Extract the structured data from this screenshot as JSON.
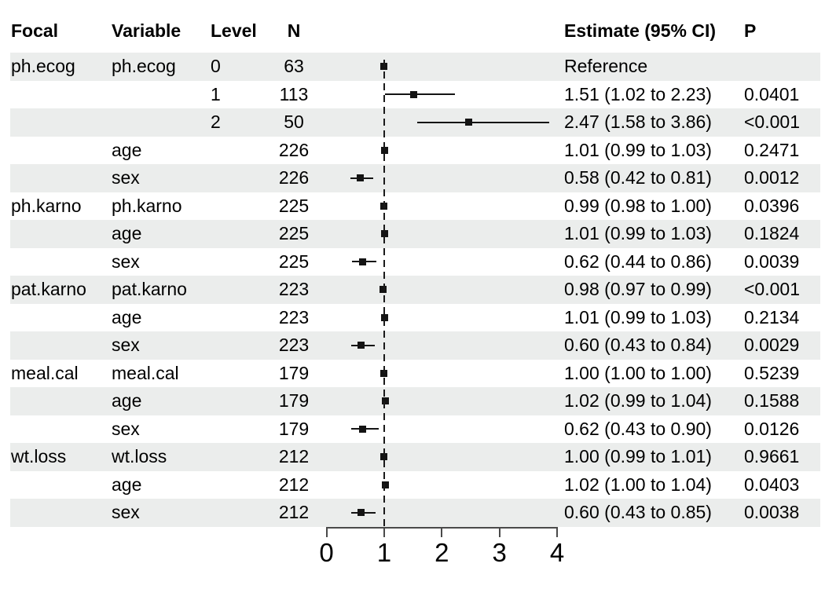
{
  "chart_data": {
    "type": "scatter",
    "variant": "forest-plot",
    "title": "",
    "xlabel": "",
    "legend": "none",
    "header": {
      "focal": "Focal",
      "variable": "Variable",
      "level": "Level",
      "n": "N",
      "estimate": "Estimate (95% CI)",
      "p": "P"
    },
    "x_axis": {
      "min": 0,
      "max": 4,
      "ticks": [
        "0",
        "1",
        "2",
        "3",
        "4"
      ],
      "reference_line": 1
    },
    "rows": [
      {
        "focal": "ph.ecog",
        "variable": "ph.ecog",
        "level": "0",
        "n": "63",
        "estimate_text": "Reference",
        "p": "",
        "est": 1.0,
        "lo": null,
        "hi": null,
        "reference": true
      },
      {
        "focal": "",
        "variable": "",
        "level": "1",
        "n": "113",
        "estimate_text": "1.51 (1.02 to 2.23)",
        "p": "0.0401",
        "est": 1.51,
        "lo": 1.02,
        "hi": 2.23,
        "reference": false
      },
      {
        "focal": "",
        "variable": "",
        "level": "2",
        "n": "50",
        "estimate_text": "2.47 (1.58 to 3.86)",
        "p": "<0.001",
        "est": 2.47,
        "lo": 1.58,
        "hi": 3.86,
        "reference": false
      },
      {
        "focal": "",
        "variable": "age",
        "level": "",
        "n": "226",
        "estimate_text": "1.01 (0.99 to 1.03)",
        "p": "0.2471",
        "est": 1.01,
        "lo": 0.99,
        "hi": 1.03,
        "reference": false
      },
      {
        "focal": "",
        "variable": "sex",
        "level": "",
        "n": "226",
        "estimate_text": "0.58 (0.42 to 0.81)",
        "p": "0.0012",
        "est": 0.58,
        "lo": 0.42,
        "hi": 0.81,
        "reference": false
      },
      {
        "focal": "ph.karno",
        "variable": "ph.karno",
        "level": "",
        "n": "225",
        "estimate_text": "0.99 (0.98 to 1.00)",
        "p": "0.0396",
        "est": 0.99,
        "lo": 0.98,
        "hi": 1.0,
        "reference": false
      },
      {
        "focal": "",
        "variable": "age",
        "level": "",
        "n": "225",
        "estimate_text": "1.01 (0.99 to 1.03)",
        "p": "0.1824",
        "est": 1.01,
        "lo": 0.99,
        "hi": 1.03,
        "reference": false
      },
      {
        "focal": "",
        "variable": "sex",
        "level": "",
        "n": "225",
        "estimate_text": "0.62 (0.44 to 0.86)",
        "p": "0.0039",
        "est": 0.62,
        "lo": 0.44,
        "hi": 0.86,
        "reference": false
      },
      {
        "focal": "pat.karno",
        "variable": "pat.karno",
        "level": "",
        "n": "223",
        "estimate_text": "0.98 (0.97 to 0.99)",
        "p": "<0.001",
        "est": 0.98,
        "lo": 0.97,
        "hi": 0.99,
        "reference": false
      },
      {
        "focal": "",
        "variable": "age",
        "level": "",
        "n": "223",
        "estimate_text": "1.01 (0.99 to 1.03)",
        "p": "0.2134",
        "est": 1.01,
        "lo": 0.99,
        "hi": 1.03,
        "reference": false
      },
      {
        "focal": "",
        "variable": "sex",
        "level": "",
        "n": "223",
        "estimate_text": "0.60 (0.43 to 0.84)",
        "p": "0.0029",
        "est": 0.6,
        "lo": 0.43,
        "hi": 0.84,
        "reference": false
      },
      {
        "focal": "meal.cal",
        "variable": "meal.cal",
        "level": "",
        "n": "179",
        "estimate_text": "1.00 (1.00 to 1.00)",
        "p": "0.5239",
        "est": 1.0,
        "lo": 1.0,
        "hi": 1.0,
        "reference": false
      },
      {
        "focal": "",
        "variable": "age",
        "level": "",
        "n": "179",
        "estimate_text": "1.02 (0.99 to 1.04)",
        "p": "0.1588",
        "est": 1.02,
        "lo": 0.99,
        "hi": 1.04,
        "reference": false
      },
      {
        "focal": "",
        "variable": "sex",
        "level": "",
        "n": "179",
        "estimate_text": "0.62 (0.43 to 0.90)",
        "p": "0.0126",
        "est": 0.62,
        "lo": 0.43,
        "hi": 0.9,
        "reference": false
      },
      {
        "focal": "wt.loss",
        "variable": "wt.loss",
        "level": "",
        "n": "212",
        "estimate_text": "1.00 (0.99 to 1.01)",
        "p": "0.9661",
        "est": 1.0,
        "lo": 0.99,
        "hi": 1.01,
        "reference": false
      },
      {
        "focal": "",
        "variable": "age",
        "level": "",
        "n": "212",
        "estimate_text": "1.02 (1.00 to 1.04)",
        "p": "0.0403",
        "est": 1.02,
        "lo": 1.0,
        "hi": 1.04,
        "reference": false
      },
      {
        "focal": "",
        "variable": "sex",
        "level": "",
        "n": "212",
        "estimate_text": "0.60 (0.43 to 0.85)",
        "p": "0.0038",
        "est": 0.6,
        "lo": 0.43,
        "hi": 0.85,
        "reference": false
      }
    ],
    "colors": {
      "stripe": "#ebedec",
      "marker": "#141414",
      "ci_line": "#141414",
      "reference_line": "#1a1a1a",
      "axis": "#4a4a4a",
      "text": "#000000",
      "background": "#ffffff"
    }
  }
}
